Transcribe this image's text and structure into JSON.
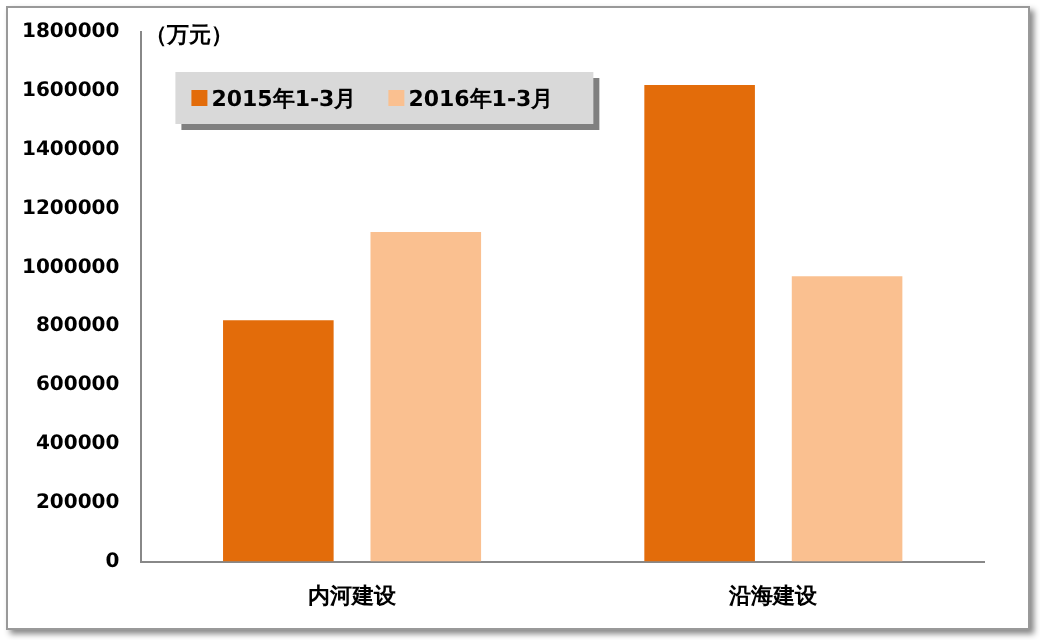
{
  "chart_data": {
    "type": "bar",
    "ylabel": "（万元）",
    "categories": [
      "内河建设",
      "沿海建设"
    ],
    "series": [
      {
        "name": "2015年1-3月",
        "color": "#e36c0a",
        "values": [
          820000,
          1620000
        ]
      },
      {
        "name": "2016年1-3月",
        "color": "#fac090",
        "values": [
          1120000,
          970000
        ]
      }
    ],
    "ylim": [
      0,
      1800000
    ],
    "yticks": [
      0,
      200000,
      400000,
      600000,
      800000,
      1000000,
      1200000,
      1400000,
      1600000,
      1800000
    ],
    "grid": false,
    "legend": "top left"
  }
}
